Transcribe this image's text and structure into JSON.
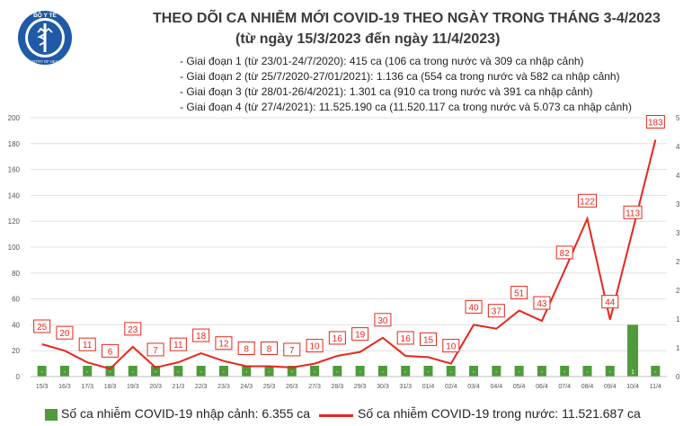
{
  "header": {
    "title_line1": "THEO DÕI CA NHIỄM MỚI COVID-19 THEO NGÀY TRONG THÁNG 3-4/2023",
    "title_line2": "(từ ngày 15/3/2023 đến ngày 11/4/2023)",
    "logo_text_top": "BỘ Y TẾ",
    "logo_text_bottom": "MINISTRY OF HEALTH"
  },
  "phases": [
    "- Giai đoạn 1 (từ 23/01-24/7/2020): 415 ca (106 ca trong nước và 309 ca nhập cảnh)",
    "- Giai đoạn 2 (từ 25/7/2020-27/01/2021): 1.136 ca (554 ca trong nước và 582 ca nhập cảnh)",
    "- Giai đoạn 3 (từ 28/01-26/4/2021): 1.301 ca (910 ca trong nước và 391 ca nhập cảnh)",
    "- Giai đoạn 4 (từ 27/4/2021): 11.525.190 ca (11.520.117 ca trong nước và 5.073 ca nhập cảnh)"
  ],
  "legend": {
    "imported": "Số ca nhiễm COVID-19 nhập cảnh: 6.355 ca",
    "domestic": "Số ca nhiễm COVID-19 trong nước: 11.521.687 ca"
  },
  "colors": {
    "bar": "#4f9a3b",
    "line": "#e8261c",
    "logo": "#1f5aa6"
  },
  "chart_data": {
    "type": "bar+line",
    "categories": [
      "15/3",
      "16/3",
      "17/3",
      "18/3",
      "19/3",
      "20/3",
      "21/3",
      "22/3",
      "23/3",
      "24/3",
      "25/3",
      "26/3",
      "27/3",
      "28/3",
      "29/3",
      "30/3",
      "31/3",
      "01/4",
      "02/4",
      "03/4",
      "04/4",
      "05/4",
      "06/4",
      "07/4",
      "08/4",
      "09/4",
      "10/4",
      "11/4"
    ],
    "ylim_left": [
      0,
      200
    ],
    "yticks_left": [
      "0",
      "20",
      "40",
      "60",
      "80",
      "100",
      "120",
      "140",
      "160",
      "180",
      "200"
    ],
    "ylim_right": [
      0,
      5
    ],
    "yticks_right": [
      "0",
      "1",
      "1",
      "2",
      "2",
      "3",
      "3",
      "4",
      "4",
      "5"
    ],
    "series": [
      {
        "axis": "right",
        "type": "bar",
        "values": [
          0,
          0,
          0,
          0,
          0,
          0,
          0,
          0,
          0,
          0,
          0,
          0,
          0,
          0,
          0,
          0,
          0,
          0,
          0,
          0,
          0,
          0,
          0,
          0,
          0,
          0,
          1,
          0
        ],
        "labels": [
          "-",
          "-",
          "-",
          "-",
          "-",
          "-",
          "-",
          "-",
          "-",
          "-",
          "-",
          "-",
          "-",
          "-",
          "-",
          "-",
          "-",
          "-",
          "-",
          "-",
          "-",
          "-",
          "-",
          "-",
          "-",
          "-",
          "1",
          "-"
        ]
      },
      {
        "axis": "left",
        "type": "line",
        "values": [
          25,
          20,
          11,
          6,
          23,
          7,
          11,
          18,
          12,
          8,
          8,
          7,
          10,
          16,
          19,
          30,
          16,
          15,
          10,
          40,
          37,
          51,
          43,
          82,
          122,
          44,
          113,
          183
        ]
      }
    ]
  }
}
